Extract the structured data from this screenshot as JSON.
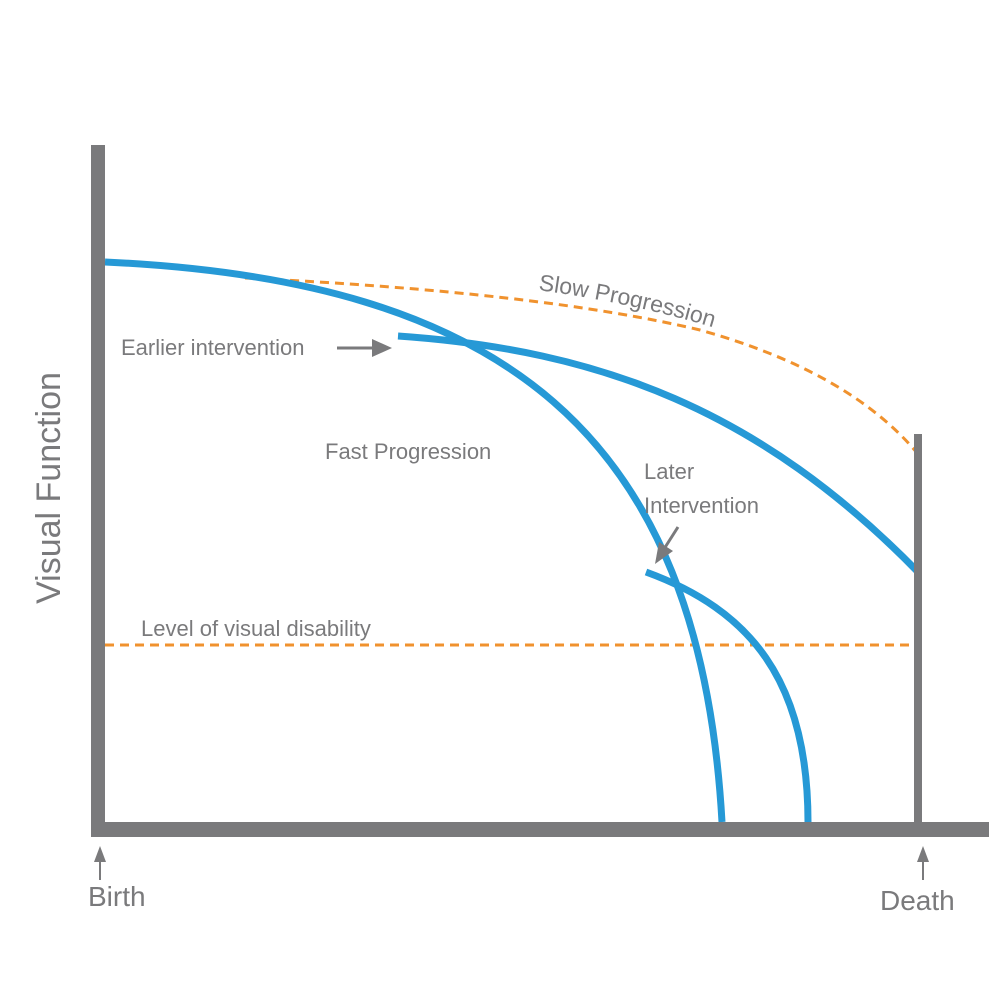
{
  "axes": {
    "y_title": "Visual Function",
    "x_start_label": "Birth",
    "x_end_label": "Death"
  },
  "curves": {
    "slow_progression": "Slow Progression",
    "fast_progression": "Fast Progression",
    "level_of_visual_disability": "Level of visual disability"
  },
  "annotations": {
    "earlier_intervention": "Earlier intervention",
    "later_intervention_line1": "Later",
    "later_intervention_line2": "Intervention"
  },
  "colors": {
    "axis": "#7a7a7c",
    "curve": "#2699d6",
    "dashed": "#f0922e",
    "text": "#7a7a7c"
  }
}
